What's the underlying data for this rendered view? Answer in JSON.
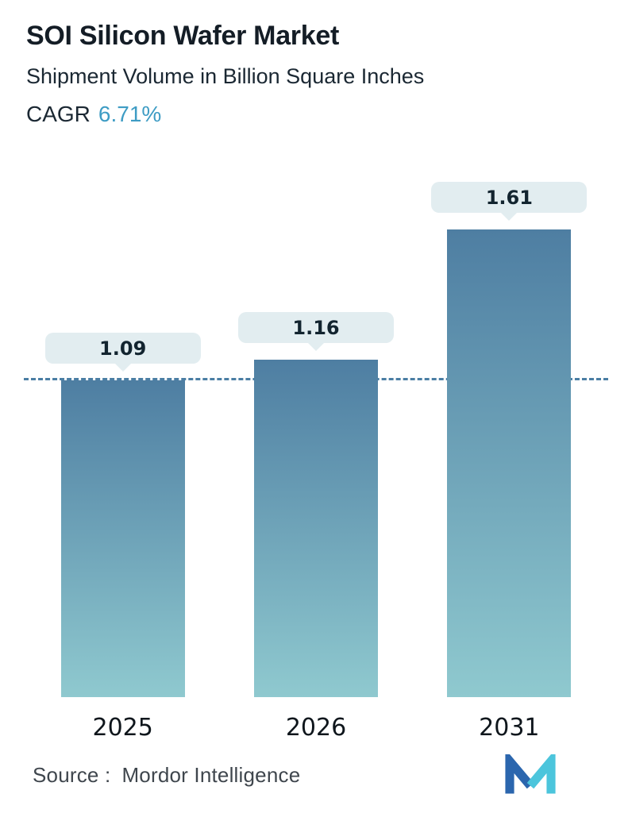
{
  "header": {
    "title": "SOI Silicon Wafer Market",
    "subtitle": "Shipment Volume in Billion Square Inches",
    "cagr_label": "CAGR",
    "cagr_value": "6.71%"
  },
  "chart_data": {
    "type": "bar",
    "title": "SOI Silicon Wafer Market",
    "subtitle": "Shipment Volume in Billion Square Inches",
    "cagr": "6.71%",
    "categories": [
      "2025",
      "2026",
      "2031"
    ],
    "values": [
      1.09,
      1.16,
      1.61
    ],
    "value_labels": [
      "1.09",
      "1.16",
      "1.61"
    ],
    "xlabel": "",
    "ylabel": "Shipment Volume in Billion Square Inches",
    "ylim": [
      0,
      1.8
    ],
    "reference_line": 1.09,
    "grid": false,
    "legend": false
  },
  "footer": {
    "source_label": "Source :",
    "source_value": "Mordor Intelligence",
    "logo_name": "mordor-intelligence-logo"
  },
  "colors": {
    "accent": "#3E9CC4",
    "title_text": "#141D26",
    "bar_top": "#4E7EA2",
    "bar_bottom": "#8FC9CF",
    "callout_bg": "#E2EDF0",
    "ref_line": "#4A7EA4",
    "logo_dark": "#2B66AE",
    "logo_light": "#4CC5DC"
  }
}
